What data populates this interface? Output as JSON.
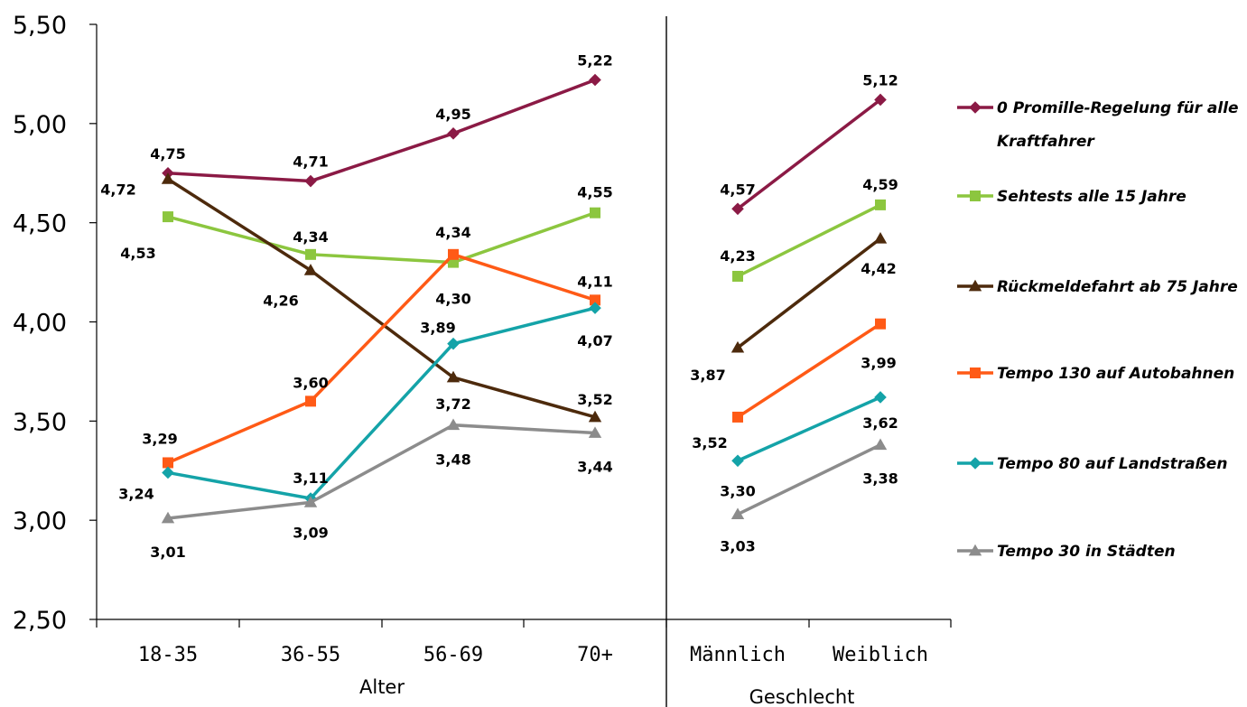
{
  "chart_data": {
    "type": "line",
    "ylim": [
      2.5,
      5.5
    ],
    "yticks": [
      "2,50",
      "3,00",
      "3,50",
      "4,00",
      "4,50",
      "5,00",
      "5,50"
    ],
    "grid": false,
    "legend_position": "right",
    "groups": [
      {
        "label": "Alter",
        "categories": [
          "18-35",
          "36-55",
          "56-69",
          "70+"
        ]
      },
      {
        "label": "Geschlecht",
        "categories": [
          "Männlich",
          "Weiblich"
        ]
      }
    ],
    "series": [
      {
        "name_lines": [
          "0 Promille-Regelung für alle",
          "Kraftfahrer"
        ],
        "color": "#8B1A45",
        "marker": "diamond",
        "values": [
          4.75,
          4.71,
          4.95,
          5.22,
          4.57,
          5.12
        ],
        "labels": [
          "4,75",
          "4,71",
          "4,95",
          "5,22",
          "4,57",
          "5,12"
        ]
      },
      {
        "name_lines": [
          "Sehtests alle 15 Jahre"
        ],
        "color": "#8CC63F",
        "marker": "square",
        "values": [
          4.53,
          4.34,
          4.3,
          4.55,
          4.23,
          4.59
        ],
        "labels": [
          "4,53",
          "4,34",
          "4,30",
          "4,55",
          "4,23",
          "4,59"
        ]
      },
      {
        "name_lines": [
          "Rückmeldefahrt ab 75 Jahre"
        ],
        "color": "#4D2A0C",
        "marker": "triangle",
        "values": [
          4.72,
          4.26,
          3.72,
          3.52,
          3.87,
          4.42
        ],
        "labels": [
          "4,72",
          "4,26",
          "3,72",
          "3,52",
          "3,87",
          "4,42"
        ]
      },
      {
        "name_lines": [
          "Tempo 130 auf Autobahnen"
        ],
        "color": "#FF5A16",
        "marker": "square",
        "values": [
          3.29,
          3.6,
          4.34,
          4.11,
          3.52,
          3.99
        ],
        "labels": [
          "3,29",
          "3,60",
          "4,34",
          "4,11",
          "3,52",
          "3,99"
        ]
      },
      {
        "name_lines": [
          "Tempo 80 auf Landstraßen"
        ],
        "color": "#14A3A8",
        "marker": "diamond",
        "values": [
          3.24,
          3.11,
          3.89,
          4.07,
          3.3,
          3.62
        ],
        "labels": [
          "3,24",
          "3,11",
          "3,89",
          "4,07",
          "3,30",
          "3,62"
        ]
      },
      {
        "name_lines": [
          "Tempo 30 in Städten"
        ],
        "color": "#8C8C8C",
        "marker": "triangle",
        "values": [
          3.01,
          3.09,
          3.48,
          3.44,
          3.03,
          3.38
        ],
        "labels": [
          "3,01",
          "3,09",
          "3,48",
          "3,44",
          "3,03",
          "3,38"
        ]
      }
    ]
  }
}
